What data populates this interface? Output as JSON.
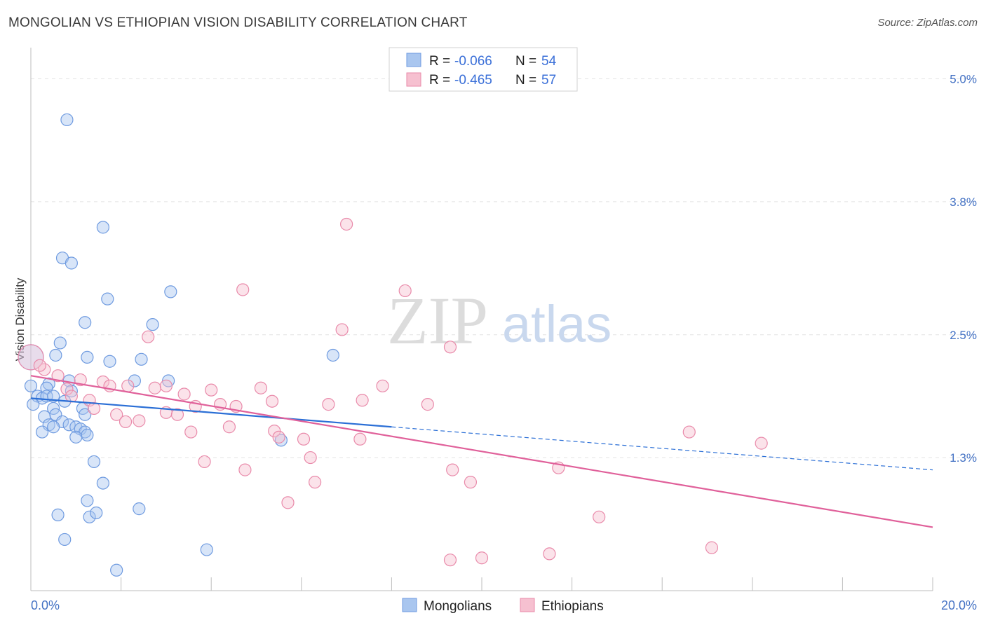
{
  "title": "MONGOLIAN VS ETHIOPIAN VISION DISABILITY CORRELATION CHART",
  "source": "Source: ZipAtlas.com",
  "watermark": {
    "zip": "ZIP",
    "atlas": "atlas"
  },
  "legend": {
    "r_label": "R =",
    "n_label": "N =",
    "rows": [
      {
        "r": "-0.066",
        "n": "54"
      },
      {
        "r": "-0.465",
        "n": "57"
      }
    ]
  },
  "bottom_legend": [
    "Mongolians",
    "Ethiopians"
  ],
  "colors": {
    "mongolian_fill": "#a9c6ef",
    "mongolian_stroke": "#6f9be0",
    "mongolian_line": "#2b6fd6",
    "ethiopian_fill": "#f6c0d0",
    "ethiopian_stroke": "#e98aaa",
    "ethiopian_line": "#e0609a",
    "tick_text": "#4472c4"
  },
  "chart_data": {
    "type": "scatter",
    "title": "MONGOLIAN VS ETHIOPIAN VISION DISABILITY CORRELATION CHART",
    "xlabel": "",
    "ylabel": "Vision Disability",
    "xlim": [
      0,
      20
    ],
    "ylim": [
      0,
      5.25
    ],
    "x_tick_labels": [
      "0.0%",
      "20.0%"
    ],
    "y_ticks": [
      1.3,
      2.5,
      3.8,
      5.0
    ],
    "y_tick_labels": [
      "1.3%",
      "2.5%",
      "3.8%",
      "5.0%"
    ],
    "grid": true,
    "legend_position": "top-center",
    "series": [
      {
        "name": "Mongolians",
        "r": -0.066,
        "n": 54,
        "trend": {
          "x0": 0,
          "y0": 1.88,
          "x1": 8,
          "y1": 1.6,
          "dashed_to_x": 20,
          "dashed_to_y": 1.18
        },
        "points": [
          [
            0.8,
            4.6
          ],
          [
            1.6,
            3.55
          ],
          [
            0.7,
            3.25
          ],
          [
            0.9,
            3.2
          ],
          [
            1.7,
            2.85
          ],
          [
            3.1,
            2.92
          ],
          [
            1.2,
            2.62
          ],
          [
            2.7,
            2.6
          ],
          [
            0.65,
            2.42
          ],
          [
            0.55,
            2.3
          ],
          [
            1.25,
            2.28
          ],
          [
            1.75,
            2.24
          ],
          [
            2.45,
            2.26
          ],
          [
            6.7,
            2.3
          ],
          [
            0.0,
            2.28
          ],
          [
            0.85,
            2.05
          ],
          [
            0.4,
            2.02
          ],
          [
            2.3,
            2.05
          ],
          [
            3.05,
            2.05
          ],
          [
            0.35,
            1.98
          ],
          [
            0.9,
            1.95
          ],
          [
            0.0,
            2.0
          ],
          [
            0.15,
            1.9
          ],
          [
            0.25,
            1.88
          ],
          [
            0.35,
            1.9
          ],
          [
            0.5,
            1.9
          ],
          [
            0.05,
            1.82
          ],
          [
            0.75,
            1.85
          ],
          [
            0.5,
            1.78
          ],
          [
            1.15,
            1.78
          ],
          [
            0.55,
            1.72
          ],
          [
            1.2,
            1.72
          ],
          [
            0.3,
            1.7
          ],
          [
            0.7,
            1.65
          ],
          [
            0.85,
            1.62
          ],
          [
            0.4,
            1.62
          ],
          [
            0.5,
            1.6
          ],
          [
            1.0,
            1.6
          ],
          [
            1.1,
            1.58
          ],
          [
            0.25,
            1.55
          ],
          [
            1.2,
            1.55
          ],
          [
            1.25,
            1.52
          ],
          [
            1.0,
            1.5
          ],
          [
            5.55,
            1.47
          ],
          [
            1.4,
            1.26
          ],
          [
            1.6,
            1.05
          ],
          [
            1.25,
            0.88
          ],
          [
            2.4,
            0.8
          ],
          [
            0.6,
            0.74
          ],
          [
            1.3,
            0.72
          ],
          [
            1.45,
            0.76
          ],
          [
            0.75,
            0.5
          ],
          [
            3.9,
            0.4
          ],
          [
            1.9,
            0.2
          ]
        ]
      },
      {
        "name": "Ethiopians",
        "r": -0.465,
        "n": 57,
        "trend": {
          "x0": 0,
          "y0": 2.1,
          "x1": 20,
          "y1": 0.62
        },
        "points": [
          [
            0.0,
            2.28
          ],
          [
            0.3,
            2.16
          ],
          [
            7.0,
            3.58
          ],
          [
            4.7,
            2.94
          ],
          [
            8.3,
            2.93
          ],
          [
            6.9,
            2.55
          ],
          [
            2.6,
            2.48
          ],
          [
            9.3,
            2.38
          ],
          [
            0.6,
            2.1
          ],
          [
            1.1,
            2.06
          ],
          [
            1.6,
            2.04
          ],
          [
            1.75,
            2.0
          ],
          [
            2.15,
            2.0
          ],
          [
            2.75,
            1.98
          ],
          [
            3.0,
            2.0
          ],
          [
            0.8,
            1.97
          ],
          [
            4.0,
            1.96
          ],
          [
            5.1,
            1.98
          ],
          [
            7.8,
            2.0
          ],
          [
            3.4,
            1.92
          ],
          [
            0.9,
            1.9
          ],
          [
            1.3,
            1.86
          ],
          [
            7.35,
            1.86
          ],
          [
            5.35,
            1.85
          ],
          [
            4.2,
            1.82
          ],
          [
            4.55,
            1.8
          ],
          [
            8.8,
            1.82
          ],
          [
            3.65,
            1.8
          ],
          [
            1.4,
            1.78
          ],
          [
            3.0,
            1.74
          ],
          [
            1.9,
            1.72
          ],
          [
            3.25,
            1.72
          ],
          [
            2.4,
            1.66
          ],
          [
            4.4,
            1.6
          ],
          [
            5.4,
            1.56
          ],
          [
            3.55,
            1.55
          ],
          [
            5.5,
            1.5
          ],
          [
            6.05,
            1.48
          ],
          [
            7.3,
            1.48
          ],
          [
            14.6,
            1.55
          ],
          [
            16.2,
            1.44
          ],
          [
            6.2,
            1.3
          ],
          [
            3.85,
            1.26
          ],
          [
            9.35,
            1.18
          ],
          [
            11.7,
            1.2
          ],
          [
            4.75,
            1.18
          ],
          [
            6.3,
            1.06
          ],
          [
            9.75,
            1.06
          ],
          [
            5.7,
            0.86
          ],
          [
            12.6,
            0.72
          ],
          [
            9.3,
            0.3
          ],
          [
            10.0,
            0.32
          ],
          [
            11.5,
            0.36
          ],
          [
            15.1,
            0.42
          ],
          [
            0.2,
            2.2
          ],
          [
            2.1,
            1.65
          ],
          [
            6.6,
            1.82
          ]
        ]
      }
    ]
  }
}
